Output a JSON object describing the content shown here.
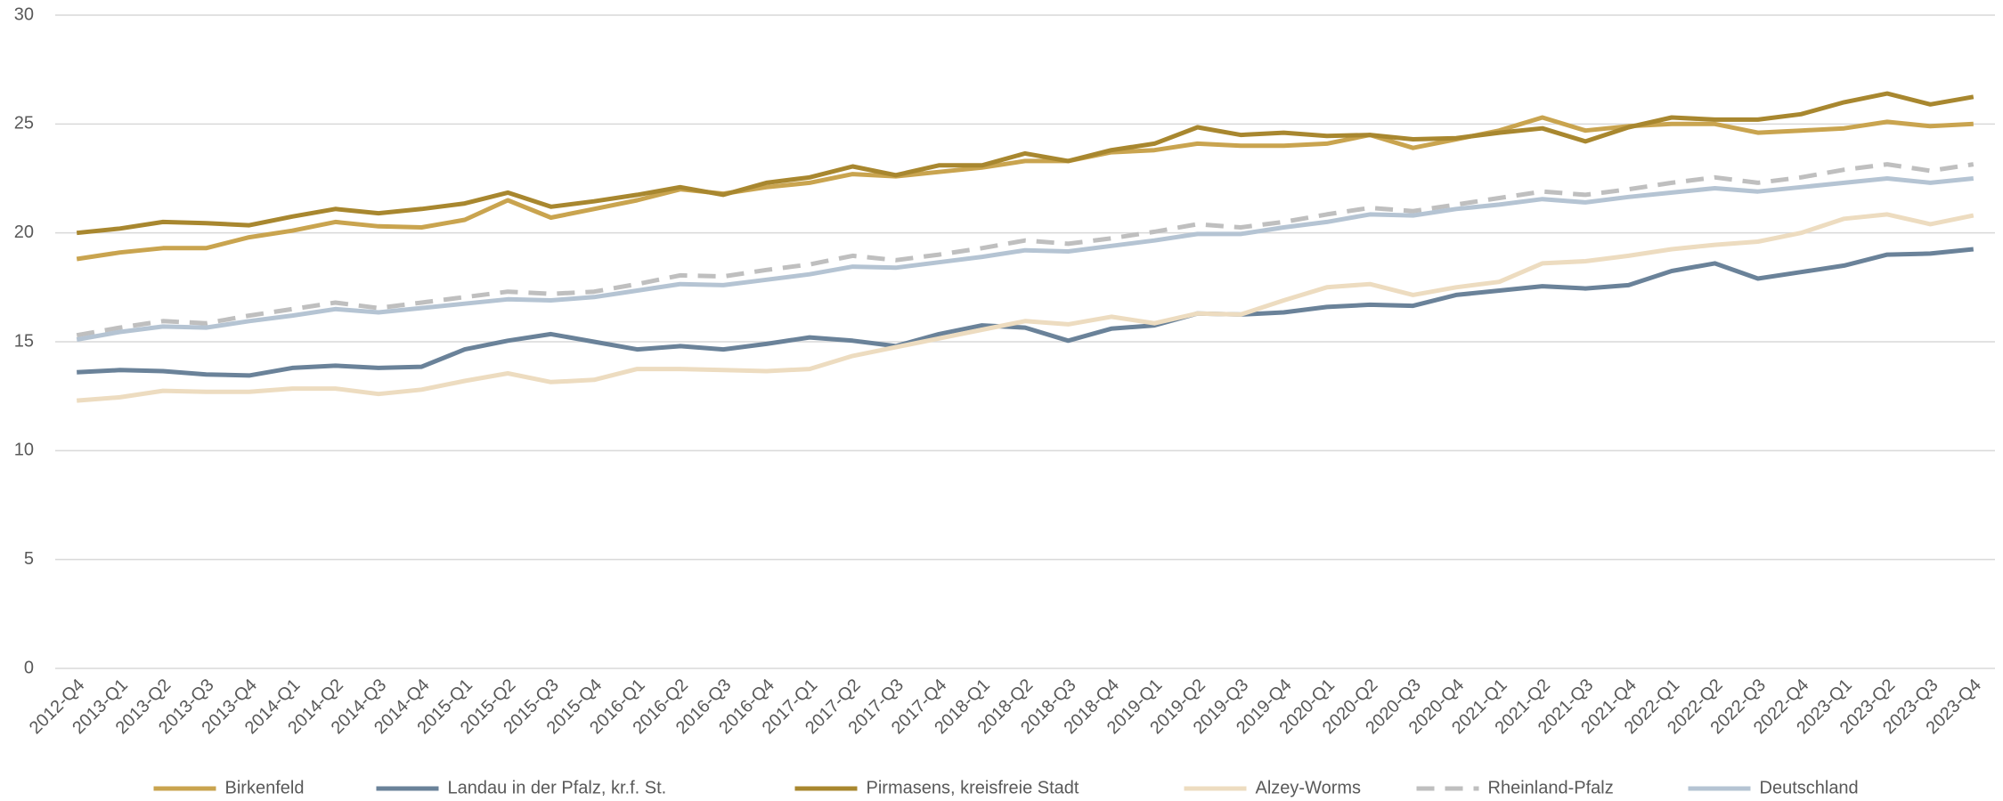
{
  "chart_data": {
    "type": "line",
    "categories": [
      "2012-Q4",
      "2013-Q1",
      "2013-Q2",
      "2013-Q3",
      "2013-Q4",
      "2014-Q1",
      "2014-Q2",
      "2014-Q3",
      "2014-Q4",
      "2015-Q1",
      "2015-Q2",
      "2015-Q3",
      "2015-Q4",
      "2016-Q1",
      "2016-Q2",
      "2016-Q3",
      "2016-Q4",
      "2017-Q1",
      "2017-Q2",
      "2017-Q3",
      "2017-Q4",
      "2018-Q1",
      "2018-Q2",
      "2018-Q3",
      "2018-Q4",
      "2019-Q1",
      "2019-Q2",
      "2019-Q3",
      "2019-Q4",
      "2020-Q1",
      "2020-Q2",
      "2020-Q3",
      "2020-Q4",
      "2021-Q1",
      "2021-Q2",
      "2021-Q3",
      "2021-Q4",
      "2022-Q1",
      "2022-Q2",
      "2022-Q3",
      "2022-Q4",
      "2023-Q1",
      "2023-Q2",
      "2023-Q3",
      "2023-Q4"
    ],
    "series": [
      {
        "name": "Birkenfeld",
        "color": "#c9a44f",
        "dashed": false,
        "values": [
          18.8,
          19.1,
          19.3,
          19.3,
          19.8,
          20.1,
          20.5,
          20.3,
          20.25,
          20.6,
          21.5,
          20.7,
          21.1,
          21.5,
          22.0,
          21.8,
          22.1,
          22.3,
          22.7,
          22.6,
          22.8,
          23.0,
          23.3,
          23.3,
          23.7,
          23.8,
          24.1,
          24.0,
          24.0,
          24.1,
          24.5,
          23.9,
          24.3,
          24.7,
          25.3,
          24.7,
          24.9,
          25.0,
          25.0,
          24.6,
          24.7,
          24.8,
          25.1,
          24.9,
          25.0
        ]
      },
      {
        "name": "Landau in der Pfalz, kr.f. St.",
        "color": "#6a8299",
        "dashed": false,
        "values": [
          13.6,
          13.7,
          13.65,
          13.5,
          13.45,
          13.8,
          13.9,
          13.8,
          13.85,
          14.65,
          15.05,
          15.35,
          15.0,
          14.65,
          14.8,
          14.65,
          14.9,
          15.2,
          15.05,
          14.8,
          15.35,
          15.75,
          15.65,
          15.05,
          15.6,
          15.75,
          16.3,
          16.25,
          16.35,
          16.6,
          16.7,
          16.65,
          17.15,
          17.35,
          17.55,
          17.45,
          17.6,
          18.25,
          18.6,
          17.9,
          18.2,
          18.5,
          19.0,
          19.05,
          19.25
        ]
      },
      {
        "name": "Pirmasens, kreisfreie Stadt",
        "color": "#a8872f",
        "dashed": false,
        "values": [
          20.0,
          20.2,
          20.5,
          20.45,
          20.35,
          20.75,
          21.1,
          20.9,
          21.1,
          21.35,
          21.85,
          21.2,
          21.45,
          21.75,
          22.1,
          21.75,
          22.3,
          22.55,
          23.05,
          22.65,
          23.1,
          23.1,
          23.65,
          23.3,
          23.8,
          24.1,
          24.85,
          24.5,
          24.6,
          24.45,
          24.5,
          24.3,
          24.35,
          24.6,
          24.8,
          24.2,
          24.85,
          25.3,
          25.2,
          25.2,
          25.45,
          26.0,
          26.4,
          25.9,
          26.25
        ]
      },
      {
        "name": "Alzey-Worms",
        "color": "#eddcc0",
        "dashed": false,
        "values": [
          12.3,
          12.45,
          12.75,
          12.7,
          12.7,
          12.85,
          12.85,
          12.6,
          12.8,
          13.2,
          13.55,
          13.15,
          13.25,
          13.75,
          13.75,
          13.7,
          13.65,
          13.75,
          14.35,
          14.75,
          15.15,
          15.55,
          15.95,
          15.8,
          16.15,
          15.85,
          16.3,
          16.25,
          16.9,
          17.5,
          17.65,
          17.15,
          17.5,
          17.75,
          18.6,
          18.7,
          18.95,
          19.25,
          19.45,
          19.6,
          20.0,
          20.65,
          20.85,
          20.4,
          20.8
        ]
      },
      {
        "name": "Rheinland-Pfalz",
        "color": "#bfbfbf",
        "dashed": true,
        "values": [
          15.3,
          15.65,
          15.95,
          15.85,
          16.2,
          16.5,
          16.8,
          16.55,
          16.8,
          17.05,
          17.3,
          17.2,
          17.3,
          17.65,
          18.05,
          18.0,
          18.3,
          18.55,
          18.95,
          18.75,
          19.0,
          19.3,
          19.65,
          19.5,
          19.75,
          20.05,
          20.4,
          20.25,
          20.5,
          20.85,
          21.15,
          21.0,
          21.3,
          21.6,
          21.9,
          21.75,
          22.0,
          22.3,
          22.55,
          22.3,
          22.55,
          22.9,
          23.15,
          22.85,
          23.15
        ]
      },
      {
        "name": "Deutschland",
        "color": "#b5c4d3",
        "dashed": false,
        "values": [
          15.1,
          15.45,
          15.7,
          15.65,
          15.95,
          16.2,
          16.5,
          16.35,
          16.55,
          16.75,
          16.95,
          16.9,
          17.05,
          17.35,
          17.65,
          17.6,
          17.85,
          18.1,
          18.45,
          18.4,
          18.65,
          18.9,
          19.2,
          19.15,
          19.4,
          19.65,
          19.95,
          19.95,
          20.25,
          20.5,
          20.85,
          20.8,
          21.1,
          21.3,
          21.55,
          21.4,
          21.65,
          21.85,
          22.05,
          21.9,
          22.1,
          22.3,
          22.5,
          22.3,
          22.5
        ]
      }
    ],
    "ylim": [
      0,
      30
    ],
    "yticks": [
      0,
      5,
      10,
      15,
      20,
      25,
      30
    ],
    "grid": true,
    "legend": "bottom"
  }
}
